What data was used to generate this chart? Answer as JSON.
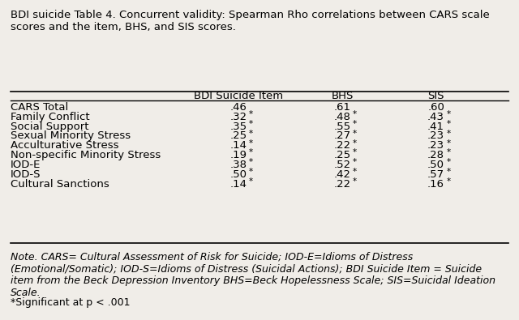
{
  "title": "BDI suicide Table 4. Concurrent validity: Spearman Rho correlations between CARS scale\nscores and the item, BHS, and SIS scores.",
  "col_headers": [
    "",
    "BDI Suicide Item",
    "BHS",
    "SIS"
  ],
  "rows": [
    {
      "label": "CARS Total",
      "bdi": ".46",
      "bdi_star": false,
      "bhs": ".61",
      "bhs_star": false,
      "sis": ".60",
      "sis_star": false
    },
    {
      "label": "Family Conflict",
      "bdi": ".32",
      "bdi_star": true,
      "bhs": ".48",
      "bhs_star": true,
      "sis": ".43",
      "sis_star": true
    },
    {
      "label": "Social Support",
      "bdi": ".35",
      "bdi_star": true,
      "bhs": ".55",
      "bhs_star": true,
      "sis": ".41",
      "sis_star": true
    },
    {
      "label": "Sexual Minority Stress",
      "bdi": ".25",
      "bdi_star": true,
      "bhs": ".27",
      "bhs_star": true,
      "sis": ".23",
      "sis_star": true
    },
    {
      "label": "Acculturative Stress",
      "bdi": ".14",
      "bdi_star": true,
      "bhs": ".22",
      "bhs_star": true,
      "sis": ".23",
      "sis_star": true
    },
    {
      "label": "Non-specific Minority Stress",
      "bdi": ".19",
      "bdi_star": true,
      "bhs": ".25",
      "bhs_star": true,
      "sis": ".28",
      "sis_star": true
    },
    {
      "label": "IOD-E",
      "bdi": ".38",
      "bdi_star": true,
      "bhs": ".52",
      "bhs_star": true,
      "sis": ".50",
      "sis_star": true
    },
    {
      "label": "IOD-S",
      "bdi": ".50",
      "bdi_star": true,
      "bhs": ".42",
      "bhs_star": true,
      "sis": ".57",
      "sis_star": true
    },
    {
      "label": "Cultural Sanctions",
      "bdi": ".14",
      "bdi_star": true,
      "bhs": ".22",
      "bhs_star": true,
      "sis": ".16",
      "sis_star": true
    }
  ],
  "note": "Note. CARS= Cultural Assessment of Risk for Suicide; IOD-E=Idioms of Distress\n(Emotional/Somatic); IOD-S=Idioms of Distress (Suicidal Actions); BDI Suicide Item = Suicide\nitem from the Beck Depression Inventory BHS=Beck Hopelessness Scale; SIS=Suicidal Ideation\nScale.",
  "footnote": "*Significant at p < .001",
  "bg_color": "#f0ede8",
  "font_size": 9.5,
  "header_font_size": 9.5
}
